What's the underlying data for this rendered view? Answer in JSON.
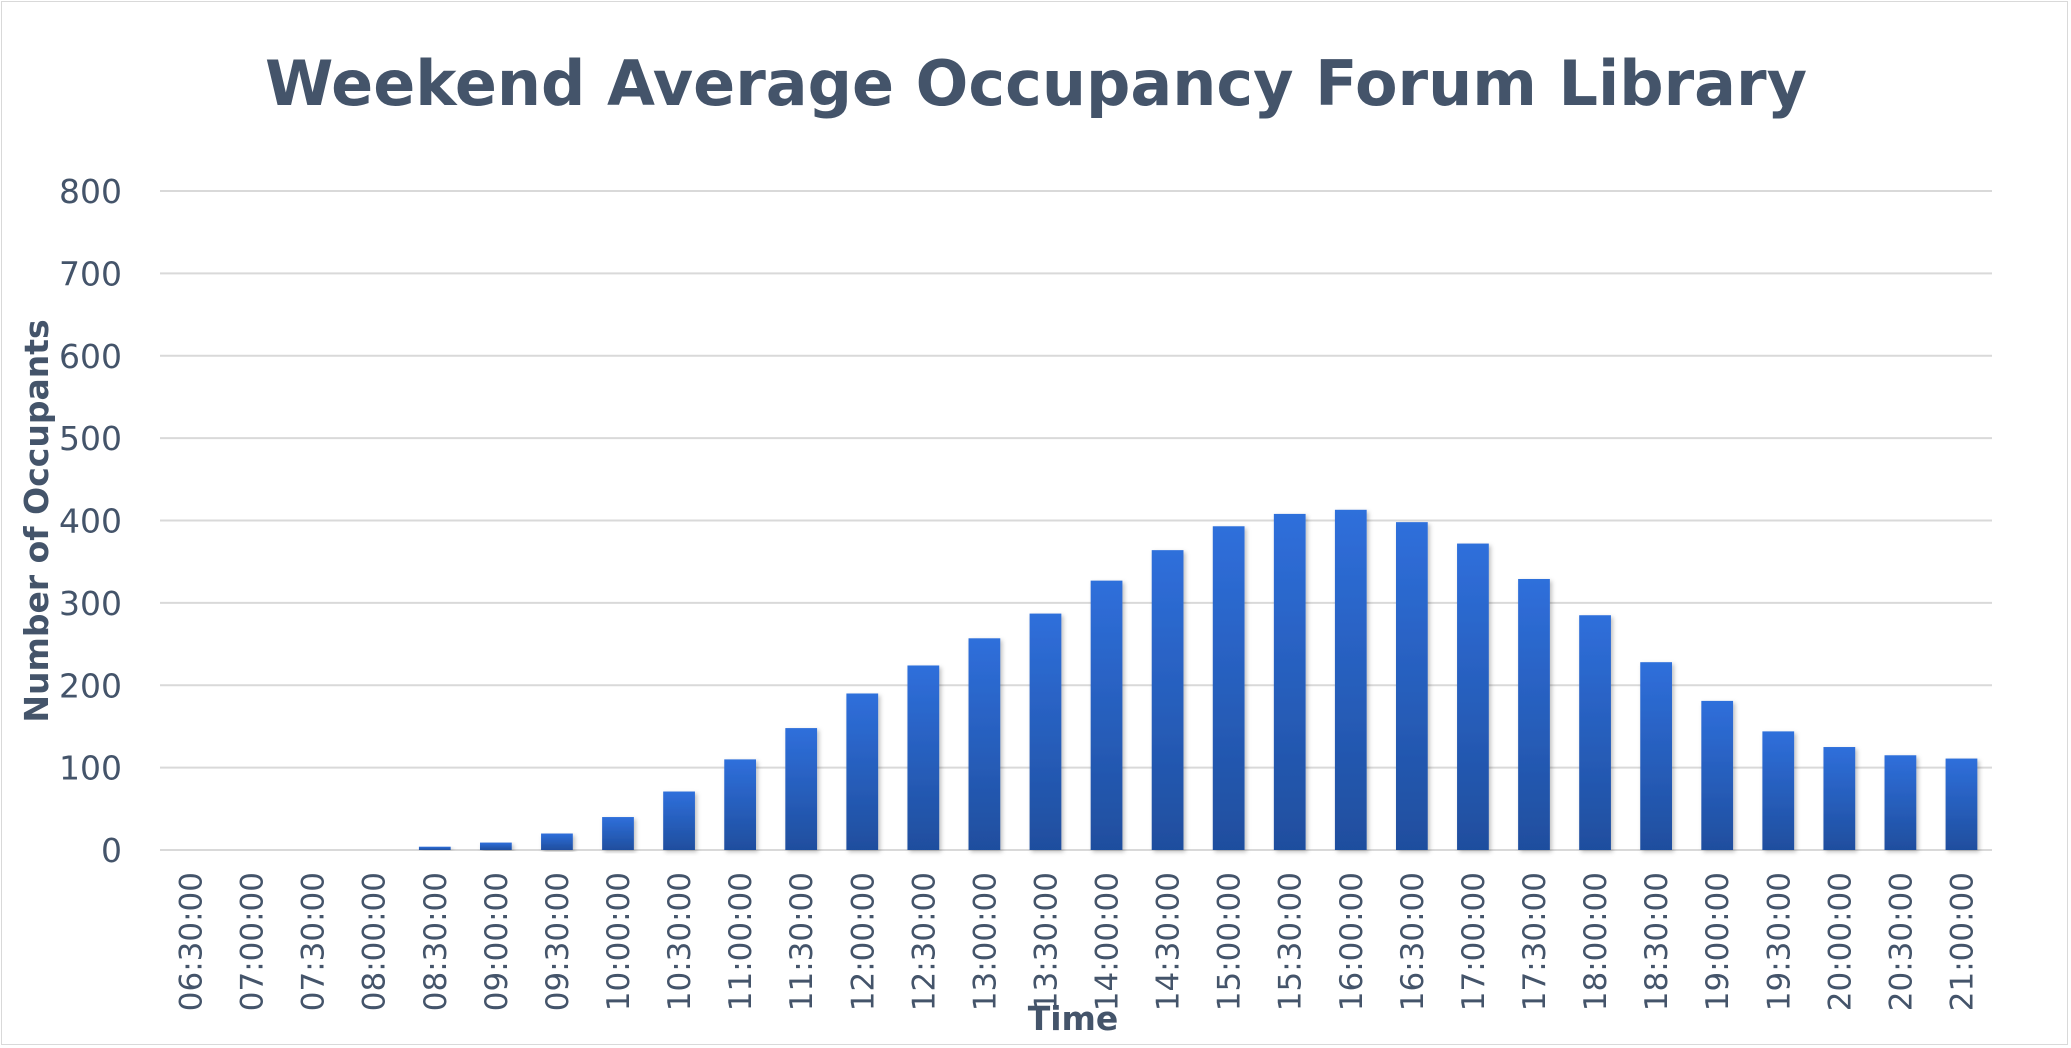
{
  "chart_data": {
    "type": "bar",
    "title": "Weekend Average Occupancy Forum Library",
    "xlabel": "Time",
    "ylabel": "Number of Occupants",
    "ylim": [
      0,
      800
    ],
    "yticks": [
      "0",
      "100",
      "200",
      "300",
      "400",
      "500",
      "600",
      "700",
      "800"
    ],
    "grid": true,
    "legend": "none",
    "categories": [
      "06:30:00",
      "07:00:00",
      "07:30:00",
      "08:00:00",
      "08:30:00",
      "09:00:00",
      "09:30:00",
      "10:00:00",
      "10:30:00",
      "11:00:00",
      "11:30:00",
      "12:00:00",
      "12:30:00",
      "13:00:00",
      "13:30:00",
      "14:00:00",
      "14:30:00",
      "15:00:00",
      "15:30:00",
      "16:00:00",
      "16:30:00",
      "17:00:00",
      "17:30:00",
      "18:00:00",
      "18:30:00",
      "19:00:00",
      "19:30:00",
      "20:00:00",
      "20:30:00",
      "21:00:00"
    ],
    "values": [
      0,
      0,
      0,
      0,
      4,
      9,
      20,
      40,
      71,
      110,
      148,
      190,
      224,
      257,
      287,
      327,
      364,
      393,
      408,
      413,
      398,
      372,
      329,
      285,
      228,
      181,
      144,
      125,
      115,
      111
    ],
    "colors": {
      "bar_top": "#2f6fdb",
      "bar_bottom": "#1f4e9e",
      "text": "#44546a",
      "grid": "#d9d9d9"
    }
  }
}
